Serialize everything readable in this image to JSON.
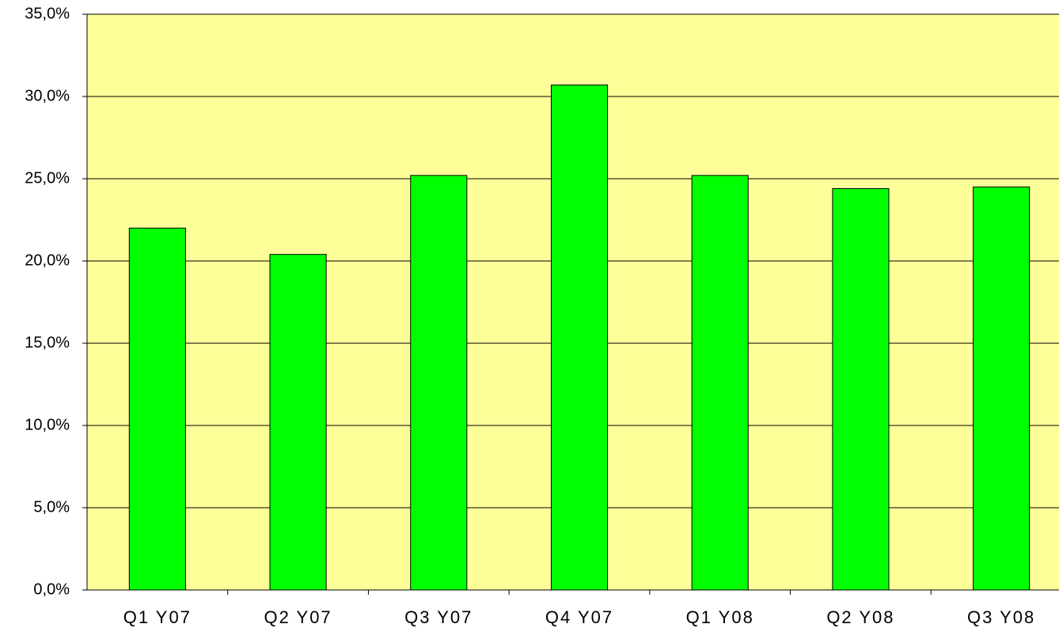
{
  "chart_data": {
    "type": "bar",
    "categories": [
      "Q1 Y07",
      "Q2 Y07",
      "Q3 Y07",
      "Q4 Y07",
      "Q1 Y08",
      "Q2 Y08",
      "Q3 Y08"
    ],
    "values": [
      22.0,
      20.4,
      25.2,
      30.7,
      25.2,
      24.4,
      24.5
    ],
    "color": "#00ff00",
    "ylim": [
      0,
      35
    ],
    "yticks": [
      {
        "value": 0,
        "label": "0,0%"
      },
      {
        "value": 5,
        "label": "5,0%"
      },
      {
        "value": 10,
        "label": "10,0%"
      },
      {
        "value": 15,
        "label": "15,0%"
      },
      {
        "value": 20,
        "label": "20,0%"
      },
      {
        "value": 25,
        "label": "25,0%"
      },
      {
        "value": 30,
        "label": "30,0%"
      },
      {
        "value": 35,
        "label": "35,0%"
      }
    ],
    "grid": true
  }
}
